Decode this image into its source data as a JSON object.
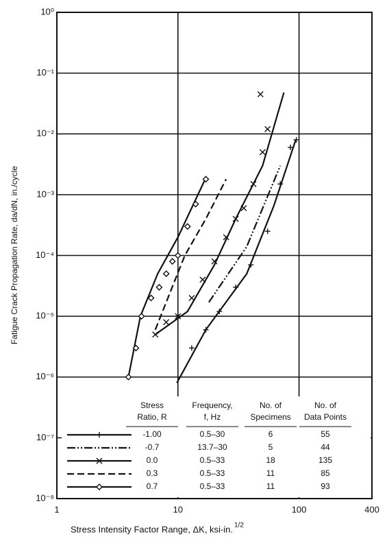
{
  "chart_data": {
    "type": "line",
    "y_label": "Fatigue Crack Propagation Rate, da/dN, in./cycle",
    "x_label": "Stress Intensity Factor Range, ΔK, ksi-in.",
    "x_label_superscript": "1/2",
    "log_x": true,
    "log_y": true,
    "grid": true,
    "xlim": [
      1,
      400
    ],
    "xticks": [
      1,
      10,
      100,
      400
    ],
    "ylim": [
      1e-08,
      1
    ],
    "yticks": [
      {
        "value": 1e-08,
        "label": "10⁻⁸"
      },
      {
        "value": 1e-07,
        "label": "10⁻⁷"
      },
      {
        "value": 1e-06,
        "label": "10⁻⁶"
      },
      {
        "value": 1e-05,
        "label": "10⁻⁵"
      },
      {
        "value": 0.0001,
        "label": "10⁻⁴"
      },
      {
        "value": 0.001,
        "label": "10⁻³"
      },
      {
        "value": 0.01,
        "label": "10⁻²"
      },
      {
        "value": 0.1,
        "label": "10⁻¹"
      },
      {
        "value": 1,
        "label": "10⁰"
      }
    ],
    "series": [
      {
        "name": "-1.00",
        "color": "#111111",
        "dash": "solid",
        "marker": "plus",
        "x": [
          9.8,
          17,
          37,
          62,
          94
        ],
        "values": [
          8e-07,
          6e-06,
          5e-05,
          0.00066,
          0.008
        ],
        "points": {
          "x": [
            10,
            13,
            17,
            22,
            30,
            40,
            55,
            70,
            85,
            95
          ],
          "values": [
            1e-06,
            3e-06,
            6e-06,
            1.2e-05,
            3e-05,
            7e-05,
            0.00025,
            0.0015,
            0.006,
            0.008
          ]
        }
      },
      {
        "name": "-0.7",
        "color": "#111111",
        "dash": "dashdotdot",
        "marker": "none",
        "x": [
          18,
          37,
          70
        ],
        "values": [
          1.7e-05,
          0.00014,
          0.003
        ]
      },
      {
        "name": "0.0",
        "color": "#111111",
        "dash": "solid",
        "marker": "cross",
        "x": [
          6.5,
          12,
          20,
          30,
          50,
          75
        ],
        "values": [
          5e-06,
          1.2e-05,
          7e-05,
          0.0004,
          0.003,
          0.048
        ],
        "points": {
          "x": [
            6.5,
            8,
            10,
            13,
            16,
            20,
            25,
            30,
            35,
            42,
            50,
            55,
            48
          ],
          "values": [
            5e-06,
            8e-06,
            1e-05,
            2e-05,
            4e-05,
            8e-05,
            0.0002,
            0.0004,
            0.0006,
            0.0015,
            0.005,
            0.012,
            0.045
          ]
        }
      },
      {
        "name": "0.3",
        "color": "#111111",
        "dash": "dashed",
        "marker": "none",
        "x": [
          6.5,
          11.4,
          17,
          25
        ],
        "values": [
          6e-06,
          0.0001,
          0.0004,
          0.0018
        ]
      },
      {
        "name": "0.7",
        "color": "#111111",
        "dash": "solid",
        "marker": "diamond",
        "x": [
          3.9,
          4.9,
          6.8,
          10,
          16.8
        ],
        "values": [
          1e-06,
          1e-05,
          5e-05,
          0.0002,
          0.0018
        ],
        "points": {
          "x": [
            3.9,
            4.5,
            5,
            6,
            7,
            8,
            9,
            10,
            12,
            14,
            17
          ],
          "values": [
            1e-06,
            3e-06,
            1e-05,
            2e-05,
            3e-05,
            5e-05,
            8e-05,
            0.0001,
            0.0003,
            0.0007,
            0.0018
          ]
        }
      }
    ],
    "legend_table": {
      "headers": [
        [
          "Stress",
          "Ratio, R"
        ],
        [
          "Frequency,",
          "f, Hz"
        ],
        [
          "No. of",
          "Specimens"
        ],
        [
          "No. of",
          "Data Points"
        ]
      ],
      "rows": [
        [
          "0.5–30",
          "6",
          "55"
        ],
        [
          "13.7–30",
          "5",
          "44"
        ],
        [
          "0.5–33",
          "18",
          "135"
        ],
        [
          "0.5–33",
          "11",
          "85"
        ],
        [
          "0.5–33",
          "11",
          "93"
        ]
      ]
    }
  }
}
